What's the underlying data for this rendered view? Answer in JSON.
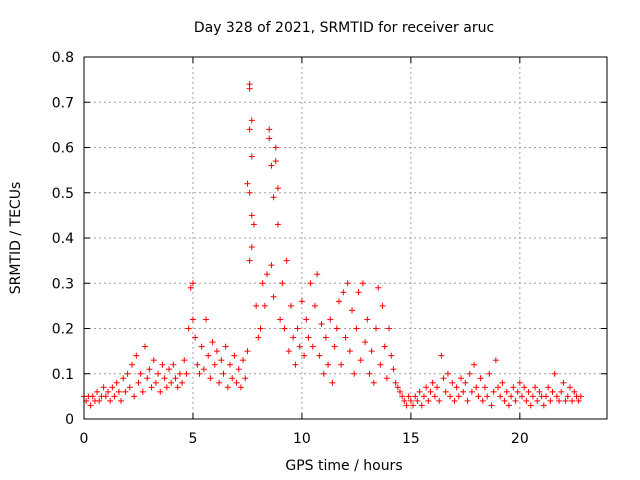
{
  "chart_data": {
    "type": "scatter",
    "title": "Day 328 of 2021, SRMTID for receiver aruc",
    "xlabel": "GPS time / hours",
    "ylabel": "SRMTID / TECUs",
    "xlim": [
      0,
      24
    ],
    "ylim": [
      0,
      0.8
    ],
    "xticks": [
      0,
      5,
      10,
      15,
      20
    ],
    "yticks": [
      0,
      0.1,
      0.2,
      0.3,
      0.4,
      0.5,
      0.6,
      0.7,
      0.8
    ],
    "xtick_labels": [
      "0",
      "5",
      "10",
      "15",
      "20"
    ],
    "ytick_labels": [
      "0",
      "0.1",
      "0.2",
      "0.3",
      "0.4",
      "0.5",
      "0.6",
      "0.7",
      "0.8"
    ],
    "grid": true,
    "marker": "+",
    "color": "#ff0000",
    "series": [
      {
        "name": "SRMTID",
        "points": [
          [
            0.0,
            0.05
          ],
          [
            0.1,
            0.04
          ],
          [
            0.2,
            0.05
          ],
          [
            0.3,
            0.03
          ],
          [
            0.4,
            0.05
          ],
          [
            0.5,
            0.04
          ],
          [
            0.6,
            0.06
          ],
          [
            0.7,
            0.04
          ],
          [
            0.8,
            0.05
          ],
          [
            0.9,
            0.07
          ],
          [
            1.0,
            0.05
          ],
          [
            1.1,
            0.06
          ],
          [
            1.2,
            0.04
          ],
          [
            1.3,
            0.07
          ],
          [
            1.4,
            0.05
          ],
          [
            1.5,
            0.08
          ],
          [
            1.6,
            0.06
          ],
          [
            1.7,
            0.04
          ],
          [
            1.8,
            0.09
          ],
          [
            1.9,
            0.06
          ],
          [
            2.0,
            0.1
          ],
          [
            2.1,
            0.07
          ],
          [
            2.2,
            0.12
          ],
          [
            2.3,
            0.05
          ],
          [
            2.4,
            0.14
          ],
          [
            2.5,
            0.08
          ],
          [
            2.6,
            0.1
          ],
          [
            2.7,
            0.06
          ],
          [
            2.8,
            0.16
          ],
          [
            2.9,
            0.09
          ],
          [
            3.0,
            0.11
          ],
          [
            3.1,
            0.07
          ],
          [
            3.2,
            0.13
          ],
          [
            3.3,
            0.08
          ],
          [
            3.4,
            0.1
          ],
          [
            3.5,
            0.06
          ],
          [
            3.6,
            0.12
          ],
          [
            3.7,
            0.09
          ],
          [
            3.8,
            0.07
          ],
          [
            3.9,
            0.11
          ],
          [
            4.0,
            0.08
          ],
          [
            4.1,
            0.12
          ],
          [
            4.2,
            0.09
          ],
          [
            4.3,
            0.07
          ],
          [
            4.4,
            0.1
          ],
          [
            4.5,
            0.08
          ],
          [
            4.6,
            0.13
          ],
          [
            4.7,
            0.1
          ],
          [
            4.8,
            0.2
          ],
          [
            4.9,
            0.29
          ],
          [
            5.0,
            0.3
          ],
          [
            5.0,
            0.22
          ],
          [
            5.1,
            0.18
          ],
          [
            5.2,
            0.12
          ],
          [
            5.3,
            0.1
          ],
          [
            5.4,
            0.16
          ],
          [
            5.5,
            0.11
          ],
          [
            5.6,
            0.22
          ],
          [
            5.7,
            0.14
          ],
          [
            5.8,
            0.09
          ],
          [
            5.9,
            0.17
          ],
          [
            6.0,
            0.12
          ],
          [
            6.1,
            0.15
          ],
          [
            6.2,
            0.08
          ],
          [
            6.3,
            0.13
          ],
          [
            6.4,
            0.1
          ],
          [
            6.5,
            0.16
          ],
          [
            6.6,
            0.07
          ],
          [
            6.7,
            0.12
          ],
          [
            6.8,
            0.09
          ],
          [
            6.9,
            0.14
          ],
          [
            7.0,
            0.08
          ],
          [
            7.1,
            0.11
          ],
          [
            7.2,
            0.07
          ],
          [
            7.3,
            0.13
          ],
          [
            7.4,
            0.09
          ],
          [
            7.5,
            0.15
          ],
          [
            7.6,
            0.74
          ],
          [
            7.6,
            0.73
          ],
          [
            7.7,
            0.66
          ],
          [
            7.6,
            0.64
          ],
          [
            7.7,
            0.58
          ],
          [
            7.5,
            0.52
          ],
          [
            7.6,
            0.5
          ],
          [
            7.7,
            0.45
          ],
          [
            7.8,
            0.43
          ],
          [
            7.7,
            0.38
          ],
          [
            7.6,
            0.35
          ],
          [
            7.9,
            0.25
          ],
          [
            8.0,
            0.18
          ],
          [
            8.1,
            0.2
          ],
          [
            8.2,
            0.3
          ],
          [
            8.3,
            0.25
          ],
          [
            8.4,
            0.32
          ],
          [
            8.5,
            0.64
          ],
          [
            8.5,
            0.62
          ],
          [
            8.6,
            0.56
          ],
          [
            8.7,
            0.49
          ],
          [
            8.8,
            0.6
          ],
          [
            8.8,
            0.57
          ],
          [
            8.9,
            0.51
          ],
          [
            8.9,
            0.43
          ],
          [
            8.6,
            0.34
          ],
          [
            8.7,
            0.27
          ],
          [
            9.0,
            0.22
          ],
          [
            9.1,
            0.3
          ],
          [
            9.2,
            0.2
          ],
          [
            9.3,
            0.35
          ],
          [
            9.4,
            0.15
          ],
          [
            9.5,
            0.25
          ],
          [
            9.6,
            0.18
          ],
          [
            9.7,
            0.12
          ],
          [
            9.8,
            0.2
          ],
          [
            9.9,
            0.16
          ],
          [
            10.0,
            0.26
          ],
          [
            10.1,
            0.14
          ],
          [
            10.2,
            0.22
          ],
          [
            10.3,
            0.18
          ],
          [
            10.4,
            0.3
          ],
          [
            10.5,
            0.16
          ],
          [
            10.6,
            0.25
          ],
          [
            10.7,
            0.32
          ],
          [
            10.8,
            0.14
          ],
          [
            10.9,
            0.21
          ],
          [
            11.0,
            0.1
          ],
          [
            11.1,
            0.18
          ],
          [
            11.2,
            0.12
          ],
          [
            11.3,
            0.22
          ],
          [
            11.4,
            0.08
          ],
          [
            11.5,
            0.16
          ],
          [
            11.6,
            0.2
          ],
          [
            11.7,
            0.26
          ],
          [
            11.8,
            0.12
          ],
          [
            11.9,
            0.28
          ],
          [
            12.0,
            0.18
          ],
          [
            12.1,
            0.3
          ],
          [
            12.2,
            0.15
          ],
          [
            12.3,
            0.24
          ],
          [
            12.4,
            0.1
          ],
          [
            12.5,
            0.2
          ],
          [
            12.6,
            0.28
          ],
          [
            12.7,
            0.13
          ],
          [
            12.8,
            0.3
          ],
          [
            12.9,
            0.17
          ],
          [
            13.0,
            0.22
          ],
          [
            13.1,
            0.1
          ],
          [
            13.2,
            0.15
          ],
          [
            13.3,
            0.08
          ],
          [
            13.4,
            0.2
          ],
          [
            13.5,
            0.29
          ],
          [
            13.6,
            0.12
          ],
          [
            13.7,
            0.25
          ],
          [
            13.8,
            0.16
          ],
          [
            13.9,
            0.09
          ],
          [
            14.0,
            0.2
          ],
          [
            14.1,
            0.14
          ],
          [
            14.2,
            0.11
          ],
          [
            14.3,
            0.08
          ],
          [
            14.4,
            0.07
          ],
          [
            14.5,
            0.06
          ],
          [
            14.6,
            0.05
          ],
          [
            14.7,
            0.04
          ],
          [
            14.8,
            0.03
          ],
          [
            14.9,
            0.05
          ],
          [
            15.0,
            0.04
          ],
          [
            15.1,
            0.03
          ],
          [
            15.2,
            0.05
          ],
          [
            15.3,
            0.04
          ],
          [
            15.4,
            0.06
          ],
          [
            15.5,
            0.03
          ],
          [
            15.6,
            0.05
          ],
          [
            15.7,
            0.07
          ],
          [
            15.8,
            0.04
          ],
          [
            15.9,
            0.06
          ],
          [
            16.0,
            0.08
          ],
          [
            16.1,
            0.05
          ],
          [
            16.2,
            0.07
          ],
          [
            16.3,
            0.04
          ],
          [
            16.4,
            0.14
          ],
          [
            16.5,
            0.09
          ],
          [
            16.6,
            0.06
          ],
          [
            16.7,
            0.1
          ],
          [
            16.8,
            0.05
          ],
          [
            16.9,
            0.08
          ],
          [
            17.0,
            0.04
          ],
          [
            17.1,
            0.07
          ],
          [
            17.2,
            0.05
          ],
          [
            17.3,
            0.09
          ],
          [
            17.4,
            0.06
          ],
          [
            17.5,
            0.08
          ],
          [
            17.6,
            0.04
          ],
          [
            17.7,
            0.1
          ],
          [
            17.8,
            0.06
          ],
          [
            17.9,
            0.12
          ],
          [
            18.0,
            0.07
          ],
          [
            18.1,
            0.05
          ],
          [
            18.2,
            0.09
          ],
          [
            18.3,
            0.04
          ],
          [
            18.4,
            0.07
          ],
          [
            18.5,
            0.05
          ],
          [
            18.6,
            0.1
          ],
          [
            18.7,
            0.03
          ],
          [
            18.8,
            0.06
          ],
          [
            18.9,
            0.13
          ],
          [
            19.0,
            0.07
          ],
          [
            19.1,
            0.05
          ],
          [
            19.2,
            0.08
          ],
          [
            19.3,
            0.04
          ],
          [
            19.4,
            0.06
          ],
          [
            19.5,
            0.03
          ],
          [
            19.6,
            0.05
          ],
          [
            19.7,
            0.07
          ],
          [
            19.8,
            0.04
          ],
          [
            19.9,
            0.06
          ],
          [
            20.0,
            0.08
          ],
          [
            20.1,
            0.05
          ],
          [
            20.2,
            0.07
          ],
          [
            20.3,
            0.04
          ],
          [
            20.4,
            0.06
          ],
          [
            20.5,
            0.03
          ],
          [
            20.6,
            0.05
          ],
          [
            20.7,
            0.07
          ],
          [
            20.8,
            0.04
          ],
          [
            20.9,
            0.06
          ],
          [
            21.0,
            0.05
          ],
          [
            21.1,
            0.03
          ],
          [
            21.2,
            0.05
          ],
          [
            21.3,
            0.07
          ],
          [
            21.4,
            0.04
          ],
          [
            21.5,
            0.06
          ],
          [
            21.6,
            0.1
          ],
          [
            21.7,
            0.05
          ],
          [
            21.8,
            0.04
          ],
          [
            21.9,
            0.06
          ],
          [
            22.0,
            0.08
          ],
          [
            22.1,
            0.04
          ],
          [
            22.2,
            0.05
          ],
          [
            22.3,
            0.07
          ],
          [
            22.4,
            0.04
          ],
          [
            22.5,
            0.06
          ],
          [
            22.6,
            0.05
          ],
          [
            22.7,
            0.04
          ],
          [
            22.8,
            0.05
          ]
        ]
      }
    ]
  }
}
